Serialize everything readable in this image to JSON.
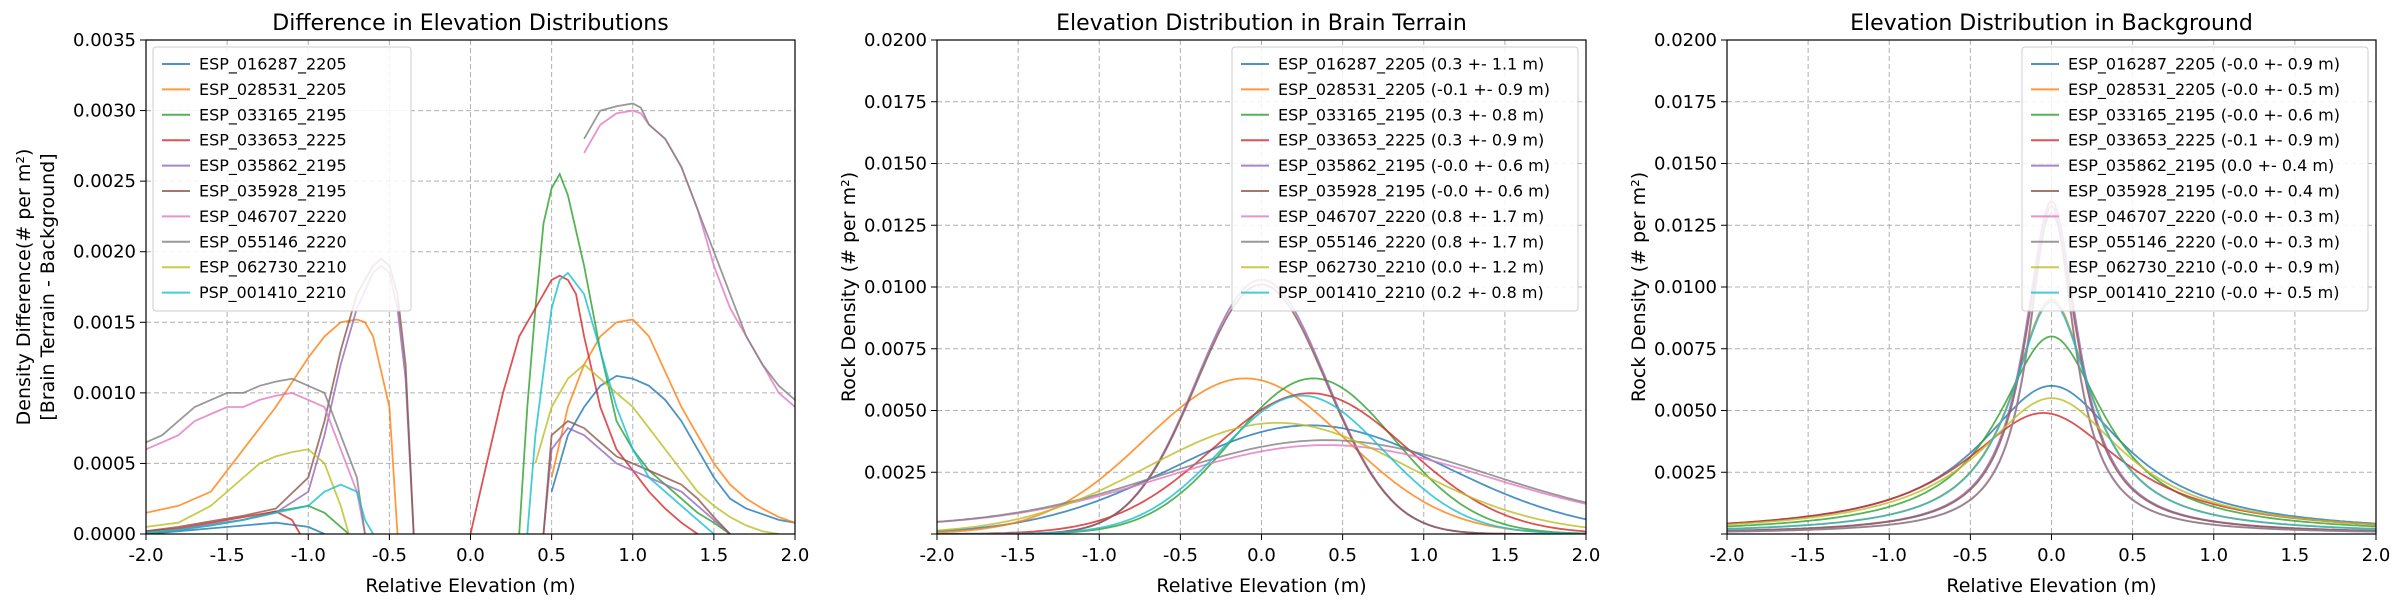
{
  "colors": [
    "#1f77b4",
    "#ff7f0e",
    "#2ca02c",
    "#d62728",
    "#9467bd",
    "#8c564b",
    "#e377c2",
    "#7f7f7f",
    "#bcbd22",
    "#17becf"
  ],
  "chart_data": [
    {
      "type": "line",
      "title": "Difference in Elevation Distributions",
      "xlabel": "Relative Elevation (m)",
      "ylabel": [
        "Density Difference(# per m²)",
        "[Brain Terrain - Background]"
      ],
      "xlim": [
        -2.0,
        2.0
      ],
      "ylim": [
        0,
        0.0035
      ],
      "xticks": [
        "-2.0",
        "-1.5",
        "-1.0",
        "-0.5",
        "0.0",
        "0.5",
        "1.0",
        "1.5",
        "2.0"
      ],
      "yticks": [
        "0.0000",
        "0.0005",
        "0.0010",
        "0.0015",
        "0.0020",
        "0.0025",
        "0.0030",
        "0.0035"
      ],
      "grid": true,
      "legend_position": "top-left",
      "series": [
        {
          "name": "ESP_016287_2205",
          "x": [
            -2,
            -1.8,
            -1.6,
            -1.4,
            -1.2,
            -1.0,
            -0.9,
            null,
            0.5,
            0.6,
            0.7,
            0.8,
            0.9,
            1.0,
            1.1,
            1.2,
            1.3,
            1.4,
            1.5,
            1.6,
            1.7,
            1.8,
            1.9,
            2.0
          ],
          "y": [
            0,
            2e-05,
            4e-05,
            6e-05,
            8e-05,
            5e-05,
            0,
            null,
            0.0003,
            0.0007,
            0.0009,
            0.00105,
            0.00112,
            0.0011,
            0.00105,
            0.00095,
            0.0008,
            0.0006,
            0.0004,
            0.00025,
            0.00018,
            0.00014,
            0.0001,
            8e-05
          ]
        },
        {
          "name": "ESP_028531_2205",
          "x": [
            -2,
            -1.8,
            -1.6,
            -1.4,
            -1.2,
            -1.0,
            -0.9,
            -0.8,
            -0.7,
            -0.65,
            -0.6,
            -0.5,
            -0.45,
            null,
            0.5,
            0.6,
            0.7,
            0.8,
            0.9,
            1.0,
            1.1,
            1.2,
            1.3,
            1.4,
            1.5,
            1.6,
            1.7,
            1.8,
            1.9,
            2.0
          ],
          "y": [
            0.00015,
            0.0002,
            0.0003,
            0.0006,
            0.0009,
            0.00125,
            0.0014,
            0.0015,
            0.00152,
            0.0015,
            0.0014,
            0.0009,
            0,
            null,
            0.0004,
            0.0009,
            0.0012,
            0.0014,
            0.0015,
            0.00152,
            0.0014,
            0.00115,
            0.0009,
            0.0007,
            0.0005,
            0.00035,
            0.00025,
            0.00018,
            0.00012,
            8e-05
          ]
        },
        {
          "name": "ESP_033165_2195",
          "x": [
            -2,
            -1.8,
            -1.6,
            -1.4,
            -1.2,
            -1.0,
            -0.9,
            -0.8,
            -0.75,
            null,
            0.3,
            0.35,
            0.4,
            0.45,
            0.5,
            0.55,
            0.6,
            0.7,
            0.8,
            0.9,
            1.0,
            1.1,
            1.2,
            1.3,
            1.4,
            1.5,
            1.6
          ],
          "y": [
            0,
            3e-05,
            6e-05,
            0.0001,
            0.00016,
            0.0002,
            0.00015,
            5e-05,
            0,
            null,
            0,
            0.0009,
            0.0016,
            0.0022,
            0.00245,
            0.00255,
            0.0024,
            0.0019,
            0.0013,
            0.0008,
            0.0006,
            0.00045,
            0.00035,
            0.00025,
            0.00015,
            8e-05,
            0
          ]
        },
        {
          "name": "ESP_033653_2225",
          "x": [
            -2,
            -1.8,
            -1.6,
            -1.4,
            -1.2,
            -1.1,
            -1.05,
            null,
            0.0,
            0.1,
            0.2,
            0.3,
            0.4,
            0.5,
            0.55,
            0.6,
            0.65,
            0.7,
            0.8,
            0.9,
            1.0,
            1.1,
            1.2,
            1.3,
            1.4
          ],
          "y": [
            2e-05,
            4e-05,
            8e-05,
            0.00012,
            0.00016,
            0.0001,
            0,
            null,
            0,
            0.0005,
            0.001,
            0.0014,
            0.0016,
            0.0018,
            0.00183,
            0.0018,
            0.0017,
            0.0014,
            0.0009,
            0.0006,
            0.00045,
            0.0003,
            0.00018,
            8e-05,
            0
          ]
        },
        {
          "name": "ESP_035862_2195",
          "x": [
            -2,
            -1.8,
            -1.6,
            -1.4,
            -1.2,
            -1.0,
            -0.9,
            -0.8,
            -0.7,
            -0.6,
            -0.55,
            -0.5,
            -0.45,
            -0.4,
            -0.35,
            null,
            0.45,
            0.5,
            0.6,
            0.7,
            0.8,
            0.9,
            1.0,
            1.1,
            1.2,
            1.3,
            1.4,
            1.5,
            1.6
          ],
          "y": [
            1e-05,
            3e-05,
            7e-05,
            0.0001,
            0.00015,
            0.0003,
            0.0007,
            0.0012,
            0.0016,
            0.00185,
            0.0019,
            0.00185,
            0.0016,
            0.0011,
            0,
            null,
            0,
            0.0006,
            0.00075,
            0.0007,
            0.0006,
            0.0005,
            0.00045,
            0.0004,
            0.00035,
            0.0003,
            0.0002,
            0.0001,
            0
          ]
        },
        {
          "name": "ESP_035928_2195",
          "x": [
            -2,
            -1.8,
            -1.6,
            -1.4,
            -1.2,
            -1.0,
            -0.9,
            -0.8,
            -0.7,
            -0.6,
            -0.55,
            -0.5,
            -0.45,
            -0.4,
            -0.35,
            null,
            0.45,
            0.5,
            0.6,
            0.7,
            0.8,
            0.9,
            1.0,
            1.1,
            1.2,
            1.3,
            1.4,
            1.5,
            1.6
          ],
          "y": [
            2e-05,
            5e-05,
            9e-05,
            0.00013,
            0.00018,
            0.0004,
            0.0008,
            0.0013,
            0.0017,
            0.0019,
            0.00195,
            0.0019,
            0.0017,
            0.0012,
            0,
            null,
            0,
            0.0007,
            0.0008,
            0.00075,
            0.00065,
            0.00055,
            0.0005,
            0.00045,
            0.0004,
            0.00035,
            0.00025,
            0.00012,
            0
          ]
        },
        {
          "name": "ESP_046707_2220",
          "x": [
            -2,
            -1.9,
            -1.8,
            -1.7,
            -1.6,
            -1.5,
            -1.4,
            -1.3,
            -1.2,
            -1.1,
            -1.0,
            -0.9,
            -0.8,
            -0.7,
            -0.65,
            null,
            0.7,
            0.8,
            0.9,
            1.0,
            1.05,
            1.1,
            1.2,
            1.3,
            1.4,
            1.5,
            1.6,
            1.7,
            1.8,
            1.9,
            2.0
          ],
          "y": [
            0.0006,
            0.00065,
            0.0007,
            0.0008,
            0.00085,
            0.0009,
            0.0009,
            0.00095,
            0.00098,
            0.001,
            0.00095,
            0.0009,
            0.0006,
            0.0003,
            0,
            null,
            0.0027,
            0.0029,
            0.00298,
            0.003,
            0.00298,
            0.0029,
            0.0028,
            0.0026,
            0.0023,
            0.0019,
            0.0016,
            0.0014,
            0.0012,
            0.001,
            0.0009
          ]
        },
        {
          "name": "ESP_055146_2220",
          "x": [
            -2,
            -1.9,
            -1.8,
            -1.7,
            -1.6,
            -1.5,
            -1.4,
            -1.3,
            -1.2,
            -1.1,
            -1.0,
            -0.9,
            -0.8,
            -0.7,
            -0.65,
            null,
            0.7,
            0.8,
            0.9,
            1.0,
            1.05,
            1.1,
            1.2,
            1.3,
            1.4,
            1.5,
            1.6,
            1.7,
            1.8,
            1.9,
            2.0
          ],
          "y": [
            0.00065,
            0.0007,
            0.0008,
            0.0009,
            0.00095,
            0.001,
            0.001,
            0.00105,
            0.00108,
            0.0011,
            0.00105,
            0.001,
            0.0007,
            0.0004,
            0,
            null,
            0.0028,
            0.003,
            0.00303,
            0.00305,
            0.00302,
            0.0029,
            0.0028,
            0.0026,
            0.0023,
            0.002,
            0.0017,
            0.0014,
            0.0012,
            0.00105,
            0.00095
          ]
        },
        {
          "name": "ESP_062730_2210",
          "x": [
            -2,
            -1.8,
            -1.6,
            -1.4,
            -1.3,
            -1.2,
            -1.1,
            -1.0,
            -0.9,
            -0.8,
            -0.75,
            null,
            0.4,
            0.5,
            0.6,
            0.7,
            0.8,
            0.9,
            1.0,
            1.1,
            1.2,
            1.3,
            1.4,
            1.5,
            1.6,
            1.7,
            1.8,
            1.9
          ],
          "y": [
            5e-05,
            8e-05,
            0.0002,
            0.0004,
            0.0005,
            0.00055,
            0.00058,
            0.0006,
            0.0005,
            0.0002,
            0,
            null,
            0.0005,
            0.0009,
            0.0011,
            0.0012,
            0.0011,
            0.001,
            0.0009,
            0.00075,
            0.0006,
            0.00045,
            0.0003,
            0.0002,
            0.00012,
            6e-05,
            2e-05,
            0
          ]
        },
        {
          "name": "PSP_001410_2210",
          "x": [
            -2,
            -1.8,
            -1.6,
            -1.4,
            -1.2,
            -1.0,
            -0.9,
            -0.8,
            -0.7,
            -0.65,
            -0.6,
            null,
            0.35,
            0.4,
            0.5,
            0.55,
            0.6,
            0.7,
            0.8,
            0.9,
            1.0,
            1.1,
            1.2,
            1.3,
            1.4,
            1.5
          ],
          "y": [
            1e-05,
            3e-05,
            6e-05,
            0.0001,
            0.00015,
            0.0002,
            0.0003,
            0.00035,
            0.0003,
            0.0001,
            0,
            null,
            0,
            0.0007,
            0.0016,
            0.0018,
            0.00185,
            0.0017,
            0.0013,
            0.0009,
            0.0006,
            0.0004,
            0.0003,
            0.0002,
            0.0001,
            0
          ]
        }
      ]
    },
    {
      "type": "line",
      "title": "Elevation Distribution in Brain Terrain",
      "xlabel": "Relative Elevation (m)",
      "ylabel": [
        "Rock Density (# per m²)"
      ],
      "xlim": [
        -2.0,
        2.0
      ],
      "ylim": [
        0,
        0.02
      ],
      "xticks": [
        "-2.0",
        "-1.5",
        "-1.0",
        "-0.5",
        "0.0",
        "0.5",
        "1.0",
        "1.5",
        "2.0"
      ],
      "yticks": [
        "",
        "0.0025",
        "0.0050",
        "0.0075",
        "0.0100",
        "0.0125",
        "0.0150",
        "0.0175",
        "0.0200"
      ],
      "grid": true,
      "legend_position": "top-right",
      "series": [
        {
          "name": "ESP_016287_2205 (0.3 +- 1.1 m)",
          "mu": 0.3,
          "sigma": 0.85,
          "peak": 0.0044,
          "base": 0
        },
        {
          "name": "ESP_028531_2205 (-0.1 +- 0.9 m)",
          "mu": -0.1,
          "sigma": 0.62,
          "peak": 0.0063,
          "base": 0
        },
        {
          "name": "ESP_033165_2195 (0.3 +- 0.8 m)",
          "mu": 0.32,
          "sigma": 0.5,
          "peak": 0.0063,
          "base": 0
        },
        {
          "name": "ESP_033653_2225 (0.3 +- 0.9 m)",
          "mu": 0.3,
          "sigma": 0.6,
          "peak": 0.0057,
          "base": 0
        },
        {
          "name": "ESP_035862_2195 (-0.0 +- 0.6 m)",
          "mu": 0.0,
          "sigma": 0.4,
          "peak": 0.0103,
          "base": 0
        },
        {
          "name": "ESP_035928_2195 (-0.0 +- 0.6 m)",
          "mu": 0.0,
          "sigma": 0.4,
          "peak": 0.0101,
          "base": 0
        },
        {
          "name": "ESP_046707_2220 (0.8 +- 1.7 m)",
          "mu": 0.4,
          "sigma": 1.0,
          "peak": 0.0036,
          "base": 0.0003
        },
        {
          "name": "ESP_055146_2220 (0.8 +- 1.7 m)",
          "mu": 0.4,
          "sigma": 1.0,
          "peak": 0.0038,
          "base": 0.0003
        },
        {
          "name": "ESP_062730_2210 (0.0 +- 1.2 m)",
          "mu": 0.1,
          "sigma": 0.8,
          "peak": 0.0045,
          "base": 0
        },
        {
          "name": "PSP_001410_2210 (0.2 +- 0.8 m)",
          "mu": 0.25,
          "sigma": 0.5,
          "peak": 0.0056,
          "base": 0
        }
      ]
    },
    {
      "type": "line",
      "title": "Elevation Distribution in Background",
      "xlabel": "Relative Elevation (m)",
      "ylabel": [
        "Rock Density (# per m²)"
      ],
      "xlim": [
        -2.0,
        2.0
      ],
      "ylim": [
        0,
        0.02
      ],
      "xticks": [
        "-2.0",
        "-1.5",
        "-1.0",
        "-0.5",
        "0.0",
        "0.5",
        "1.0",
        "1.5",
        "2.0"
      ],
      "yticks": [
        "",
        "0.0025",
        "0.0050",
        "0.0075",
        "0.0100",
        "0.0125",
        "0.0150",
        "0.0175",
        "0.0200"
      ],
      "grid": true,
      "legend_position": "top-right",
      "series": [
        {
          "name": "ESP_016287_2205 (-0.0 +- 0.9 m)",
          "mu": 0,
          "gamma": 0.55,
          "peak": 0.006
        },
        {
          "name": "ESP_028531_2205 (-0.0 +- 0.5 m)",
          "mu": 0,
          "gamma": 0.3,
          "peak": 0.0095
        },
        {
          "name": "ESP_033165_2195 (-0.0 +- 0.6 m)",
          "mu": 0,
          "gamma": 0.4,
          "peak": 0.008
        },
        {
          "name": "ESP_033653_2225 (-0.1 +- 0.9 m)",
          "mu": -0.05,
          "gamma": 0.6,
          "peak": 0.0049
        },
        {
          "name": "ESP_035862_2195 (0.0 +- 0.4 m)",
          "mu": 0,
          "gamma": 0.2,
          "peak": 0.0135
        },
        {
          "name": "ESP_035928_2195 (-0.0 +- 0.4 m)",
          "mu": 0,
          "gamma": 0.2,
          "peak": 0.013
        },
        {
          "name": "ESP_046707_2220 (-0.0 +- 0.3 m)",
          "mu": 0,
          "gamma": 0.17,
          "peak": 0.0135
        },
        {
          "name": "ESP_055146_2220 (-0.0 +- 0.3 m)",
          "mu": 0,
          "gamma": 0.17,
          "peak": 0.0133
        },
        {
          "name": "ESP_062730_2210 (-0.0 +- 0.9 m)",
          "mu": 0,
          "gamma": 0.55,
          "peak": 0.0055
        },
        {
          "name": "PSP_001410_2210 (-0.0 +- 0.5 m)",
          "mu": 0,
          "gamma": 0.3,
          "peak": 0.0094
        }
      ]
    }
  ]
}
